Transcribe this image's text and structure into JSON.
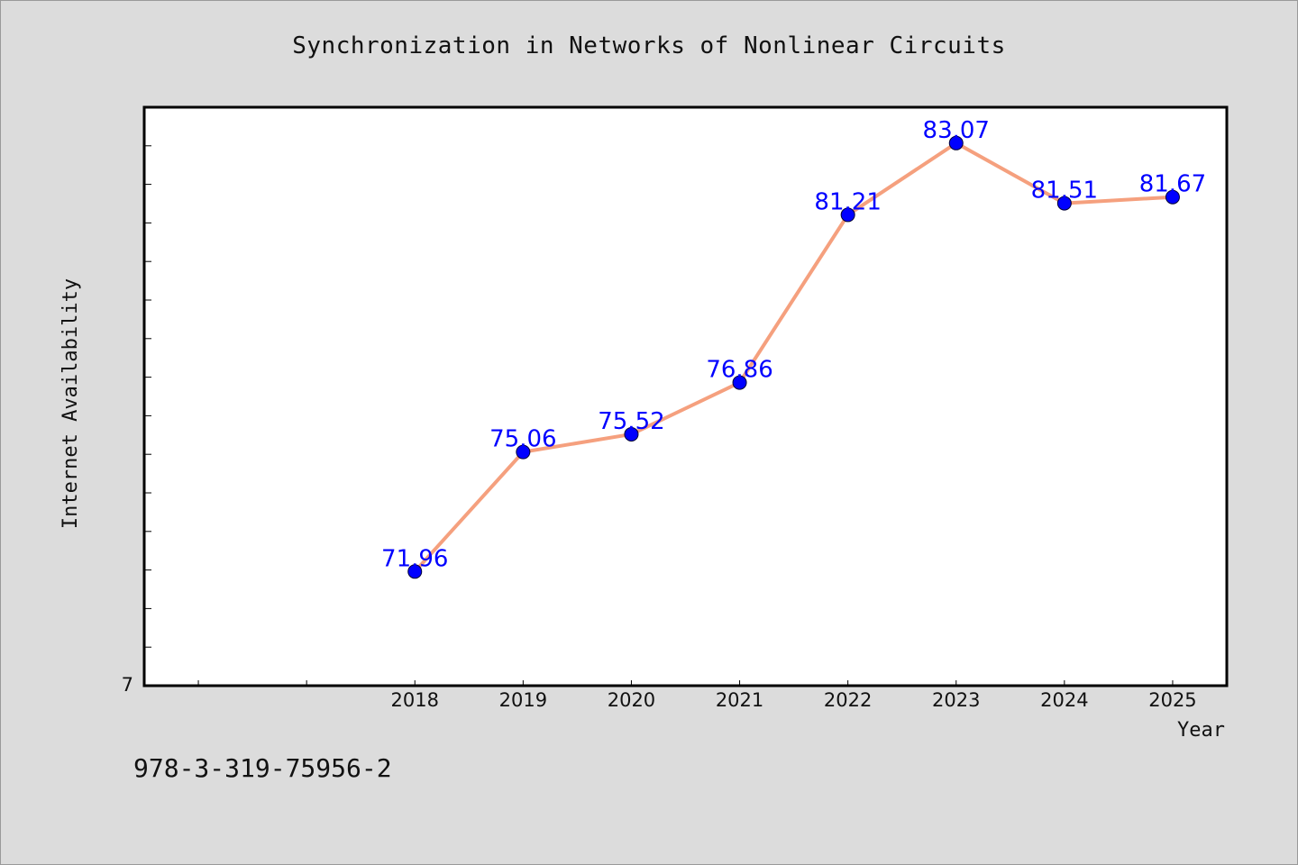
{
  "chart_data": {
    "type": "line",
    "title": "Synchronization in Networks of Nonlinear Circuits",
    "xlabel": "Year",
    "ylabel": "Internet Availability",
    "categories": [
      "2018",
      "2019",
      "2020",
      "2021",
      "2022",
      "2023",
      "2024",
      "2025"
    ],
    "series": [
      {
        "values": [
          71.96,
          75.06,
          75.52,
          76.86,
          81.21,
          83.07,
          81.51,
          81.67
        ],
        "data_labels": [
          "71.96",
          "75.06",
          "75.52",
          "76.86",
          "81.21",
          "83.07",
          "81.51",
          "81.67"
        ]
      }
    ],
    "x_slot_range": [
      -2.5,
      7.5
    ],
    "ylim": [
      69.0,
      84.0
    ],
    "y_tick_labels": [
      "7"
    ],
    "grid": false,
    "legend": "none",
    "colors": {
      "line": "#f5a07e",
      "marker": "#0000ff",
      "data_label": "#0000ff",
      "plot_background": "#ffffff",
      "page_background": "#dcdcdc"
    }
  },
  "footer": {
    "code": "978-3-319-75956-2"
  }
}
